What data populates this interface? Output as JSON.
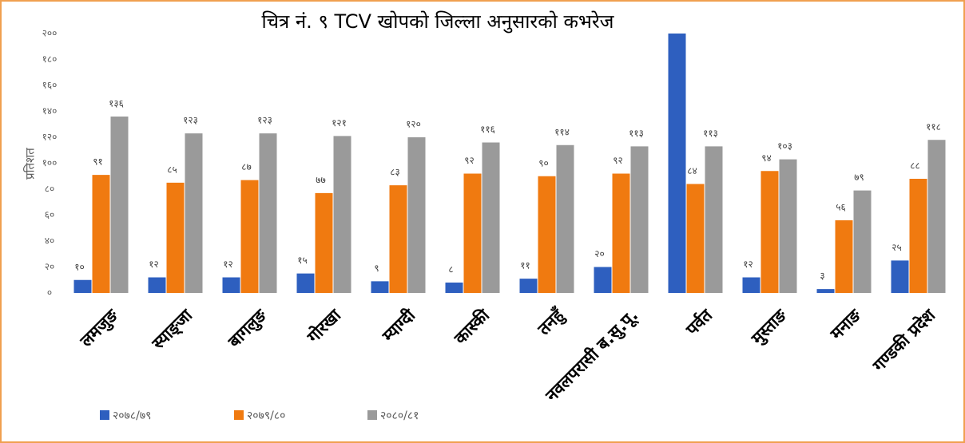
{
  "chart_data": {
    "type": "bar",
    "title": "चित्र नं. ९ TCV खोपको जिल्ला अनुसारको कभरेज",
    "y_label": "प्रतिशत",
    "categories": [
      "लमजुङ",
      "स्याङ्जा",
      "बागलुङ",
      "गोरखा",
      "म्याग्दी",
      "कास्की",
      "तनहुँ",
      "नवलपरासी ब.सु.पू.",
      "पर्वत",
      "मुस्ताङ",
      "मनाङ",
      "गण्डकी प्रदेश"
    ],
    "series": [
      {
        "name": "२०७८/७९",
        "color": "#2e5fbf",
        "values": [
          10,
          12,
          12,
          15,
          9,
          8,
          11,
          20,
          200,
          12,
          3,
          25
        ],
        "value_labels": [
          "१०",
          "१२",
          "१२",
          "१५",
          "९",
          "८",
          "११",
          "२०",
          null,
          "१२",
          "३",
          "२५"
        ]
      },
      {
        "name": "२०७९/८०",
        "color": "#f07a10",
        "values": [
          91,
          85,
          87,
          77,
          83,
          92,
          90,
          92,
          84,
          94,
          56,
          88
        ],
        "value_labels": [
          "९१",
          "८५",
          "८७",
          "७७",
          "८३",
          "९२",
          "९०",
          "९२",
          "८४",
          "९४",
          "५६",
          "८८"
        ]
      },
      {
        "name": "२०८०/८१",
        "color": "#9a9a9a",
        "values": [
          136,
          123,
          123,
          121,
          120,
          116,
          114,
          113,
          113,
          103,
          79,
          118
        ],
        "value_labels": [
          "१३६",
          "१२३",
          "१२३",
          "१२१",
          "१२०",
          "११६",
          "११४",
          "११३",
          "११३",
          "१०३",
          "७९",
          "११८"
        ]
      }
    ],
    "ylim": [
      0,
      200
    ],
    "yticks": [
      {
        "value": 0,
        "label": "०"
      },
      {
        "value": 20,
        "label": "२०"
      },
      {
        "value": 40,
        "label": "४०"
      },
      {
        "value": 60,
        "label": "६०"
      },
      {
        "value": 80,
        "label": "८०"
      },
      {
        "value": 100,
        "label": "१००"
      },
      {
        "value": 120,
        "label": "१२०"
      },
      {
        "value": 140,
        "label": "१४०"
      },
      {
        "value": 160,
        "label": "१६०"
      },
      {
        "value": 180,
        "label": "१८०"
      },
      {
        "value": 200,
        "label": "२००"
      }
    ],
    "grid": false,
    "legend": "bottom-left"
  }
}
